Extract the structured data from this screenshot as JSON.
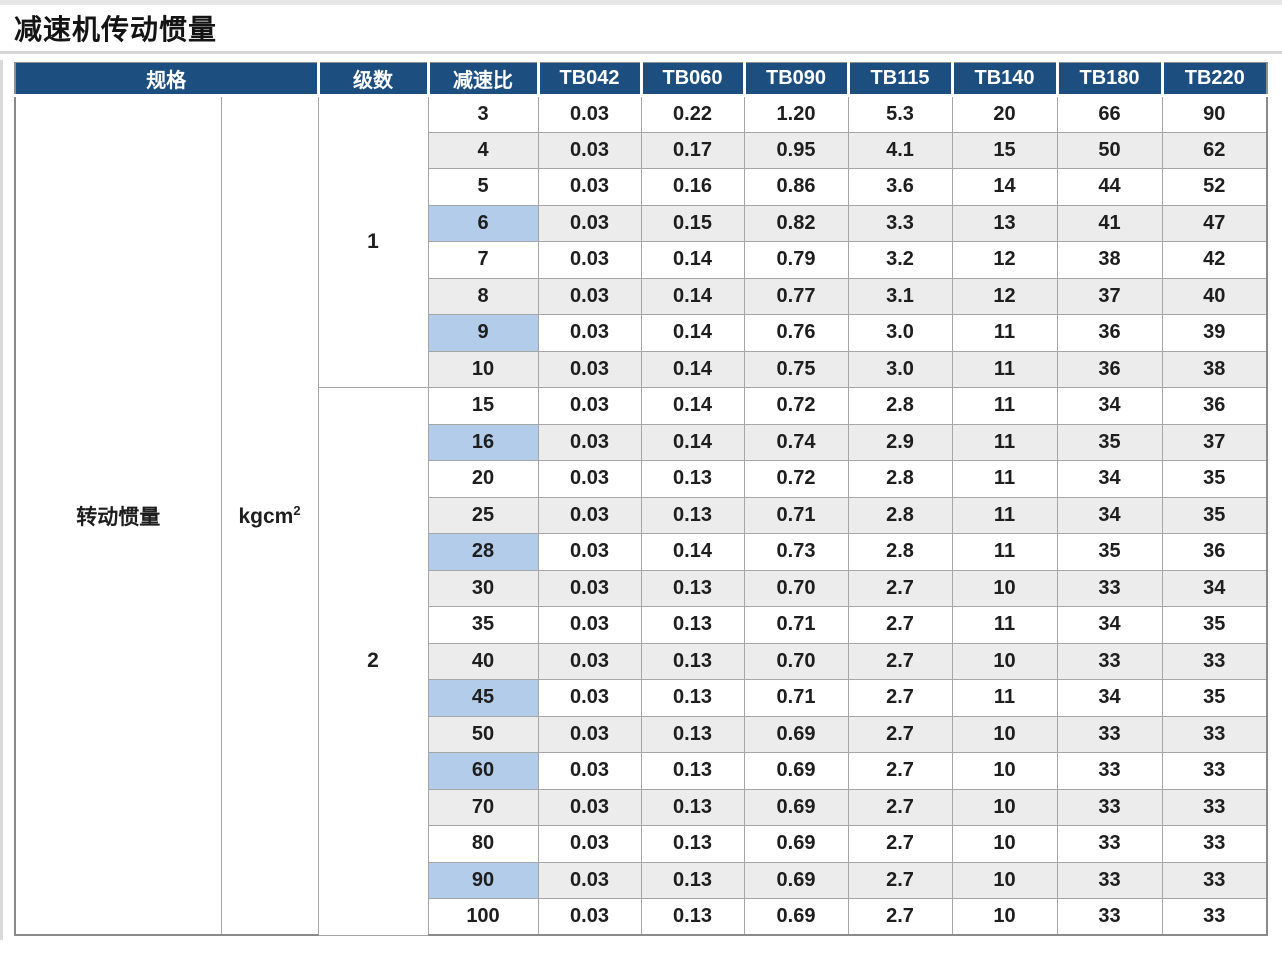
{
  "page": {
    "title": "减速机传动惯量"
  },
  "colors": {
    "page_bg": "#ffffff",
    "title_color": "#141414",
    "header_bg": "#1d4e80",
    "header_text": "#ffffff",
    "row_stripe": "#ececec",
    "ratio_highlight": "#b3cce9",
    "grid_line": "#a6a6a6",
    "outer_border": "#8a8a8a"
  },
  "table": {
    "header": {
      "spec": "规格",
      "stages": "级数",
      "ratio": "减速比",
      "models": [
        "TB042",
        "TB060",
        "TB090",
        "TB115",
        "TB140",
        "TB180",
        "TB220"
      ]
    },
    "spec_label": "转动惯量",
    "unit": {
      "base": "kgcm",
      "exponent": "2"
    },
    "stage_groups": [
      {
        "stage": "1",
        "rows": [
          {
            "ratio": "3",
            "highlight": false,
            "values": [
              "0.03",
              "0.22",
              "1.20",
              "5.3",
              "20",
              "66",
              "90"
            ]
          },
          {
            "ratio": "4",
            "highlight": false,
            "values": [
              "0.03",
              "0.17",
              "0.95",
              "4.1",
              "15",
              "50",
              "62"
            ]
          },
          {
            "ratio": "5",
            "highlight": false,
            "values": [
              "0.03",
              "0.16",
              "0.86",
              "3.6",
              "14",
              "44",
              "52"
            ]
          },
          {
            "ratio": "6",
            "highlight": true,
            "values": [
              "0.03",
              "0.15",
              "0.82",
              "3.3",
              "13",
              "41",
              "47"
            ]
          },
          {
            "ratio": "7",
            "highlight": false,
            "values": [
              "0.03",
              "0.14",
              "0.79",
              "3.2",
              "12",
              "38",
              "42"
            ]
          },
          {
            "ratio": "8",
            "highlight": false,
            "values": [
              "0.03",
              "0.14",
              "0.77",
              "3.1",
              "12",
              "37",
              "40"
            ]
          },
          {
            "ratio": "9",
            "highlight": true,
            "values": [
              "0.03",
              "0.14",
              "0.76",
              "3.0",
              "11",
              "36",
              "39"
            ]
          },
          {
            "ratio": "10",
            "highlight": false,
            "values": [
              "0.03",
              "0.14",
              "0.75",
              "3.0",
              "11",
              "36",
              "38"
            ]
          }
        ]
      },
      {
        "stage": "2",
        "rows": [
          {
            "ratio": "15",
            "highlight": false,
            "values": [
              "0.03",
              "0.14",
              "0.72",
              "2.8",
              "11",
              "34",
              "36"
            ]
          },
          {
            "ratio": "16",
            "highlight": true,
            "values": [
              "0.03",
              "0.14",
              "0.74",
              "2.9",
              "11",
              "35",
              "37"
            ]
          },
          {
            "ratio": "20",
            "highlight": false,
            "values": [
              "0.03",
              "0.13",
              "0.72",
              "2.8",
              "11",
              "34",
              "35"
            ]
          },
          {
            "ratio": "25",
            "highlight": false,
            "values": [
              "0.03",
              "0.13",
              "0.71",
              "2.8",
              "11",
              "34",
              "35"
            ]
          },
          {
            "ratio": "28",
            "highlight": true,
            "values": [
              "0.03",
              "0.14",
              "0.73",
              "2.8",
              "11",
              "35",
              "36"
            ]
          },
          {
            "ratio": "30",
            "highlight": false,
            "values": [
              "0.03",
              "0.13",
              "0.70",
              "2.7",
              "10",
              "33",
              "34"
            ]
          },
          {
            "ratio": "35",
            "highlight": false,
            "values": [
              "0.03",
              "0.13",
              "0.71",
              "2.7",
              "11",
              "34",
              "35"
            ]
          },
          {
            "ratio": "40",
            "highlight": false,
            "values": [
              "0.03",
              "0.13",
              "0.70",
              "2.7",
              "10",
              "33",
              "33"
            ]
          },
          {
            "ratio": "45",
            "highlight": true,
            "values": [
              "0.03",
              "0.13",
              "0.71",
              "2.7",
              "11",
              "34",
              "35"
            ]
          },
          {
            "ratio": "50",
            "highlight": false,
            "values": [
              "0.03",
              "0.13",
              "0.69",
              "2.7",
              "10",
              "33",
              "33"
            ]
          },
          {
            "ratio": "60",
            "highlight": true,
            "values": [
              "0.03",
              "0.13",
              "0.69",
              "2.7",
              "10",
              "33",
              "33"
            ]
          },
          {
            "ratio": "70",
            "highlight": false,
            "values": [
              "0.03",
              "0.13",
              "0.69",
              "2.7",
              "10",
              "33",
              "33"
            ]
          },
          {
            "ratio": "80",
            "highlight": false,
            "values": [
              "0.03",
              "0.13",
              "0.69",
              "2.7",
              "10",
              "33",
              "33"
            ]
          },
          {
            "ratio": "90",
            "highlight": true,
            "values": [
              "0.03",
              "0.13",
              "0.69",
              "2.7",
              "10",
              "33",
              "33"
            ]
          },
          {
            "ratio": "100",
            "highlight": false,
            "values": [
              "0.03",
              "0.13",
              "0.69",
              "2.7",
              "10",
              "33",
              "33"
            ]
          }
        ]
      }
    ]
  }
}
